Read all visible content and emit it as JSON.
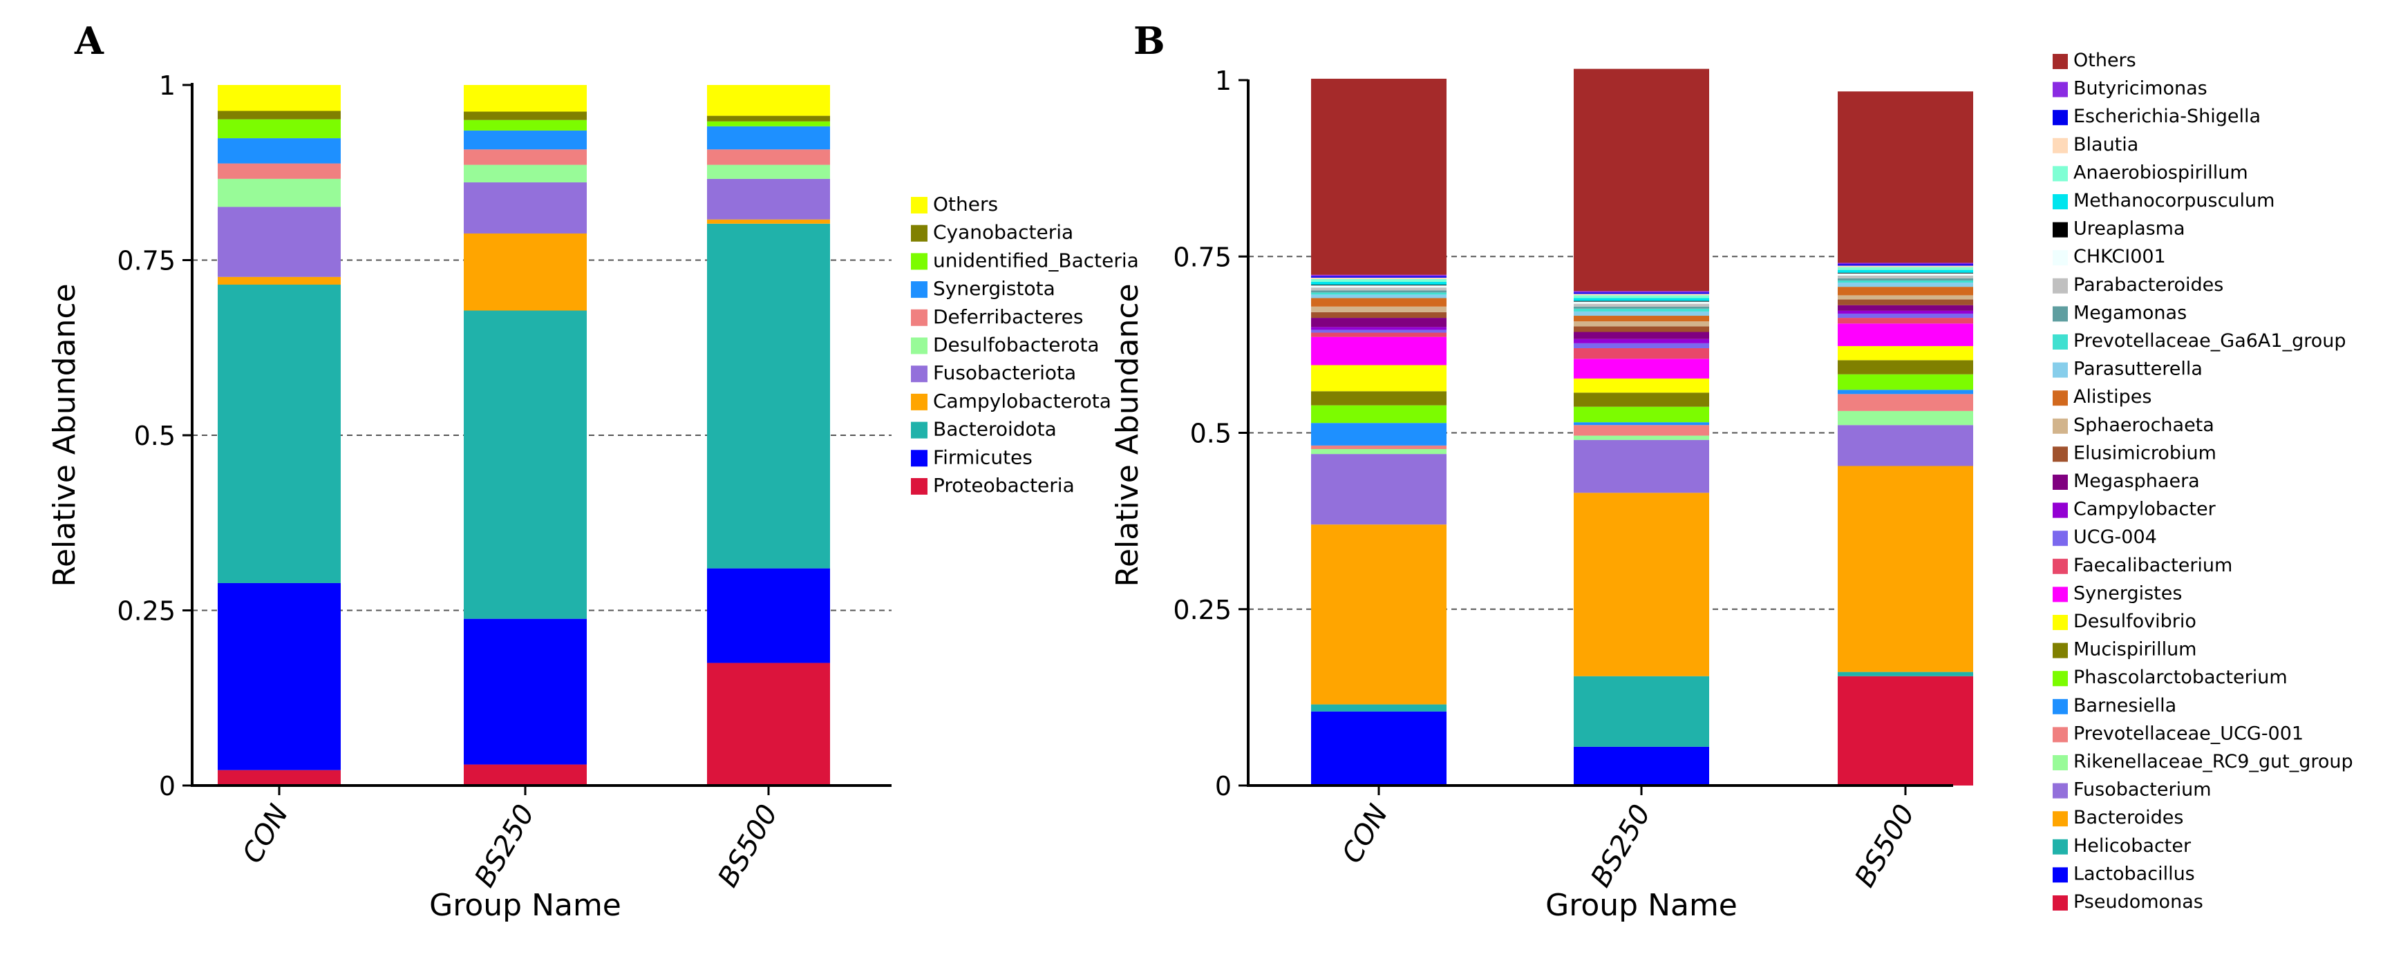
{
  "chart_data": [
    {
      "panel": "A",
      "type": "bar",
      "stacked": true,
      "title": "",
      "xlabel": "Group Name",
      "ylabel": "Relative Abundance",
      "ylim": [
        0,
        1
      ],
      "yticks": [
        "0",
        "0.25",
        "0.5",
        "0.75",
        "1"
      ],
      "grid": "dashed horizontal",
      "legend_position": "right",
      "categories": [
        "CON",
        "BS250",
        "BS500"
      ],
      "series": [
        {
          "name": "Proteobacteria",
          "color": "#DC143C",
          "values": [
            0.022,
            0.03,
            0.175
          ]
        },
        {
          "name": "Firmicutes",
          "color": "#0000FF",
          "values": [
            0.267,
            0.208,
            0.135
          ]
        },
        {
          "name": "Bacteroidota",
          "color": "#20B2AA",
          "values": [
            0.426,
            0.44,
            0.492
          ]
        },
        {
          "name": "Campylobacterota",
          "color": "#FFA500",
          "values": [
            0.011,
            0.11,
            0.006
          ]
        },
        {
          "name": "Fusobacteriota",
          "color": "#9370DB",
          "values": [
            0.1,
            0.073,
            0.058
          ]
        },
        {
          "name": "Desulfobacterota",
          "color": "#98FB98",
          "values": [
            0.04,
            0.025,
            0.02
          ]
        },
        {
          "name": "Deferribacteres",
          "color": "#F08080",
          "values": [
            0.022,
            0.022,
            0.022
          ]
        },
        {
          "name": "Synergistota",
          "color": "#1E90FF",
          "values": [
            0.036,
            0.027,
            0.033
          ]
        },
        {
          "name": "unidentified_Bacteria",
          "color": "#7CFC00",
          "values": [
            0.027,
            0.015,
            0.007
          ]
        },
        {
          "name": "Cyanobacteria",
          "color": "#808000",
          "values": [
            0.012,
            0.012,
            0.008
          ]
        },
        {
          "name": "Others",
          "color": "#FFFF00",
          "values": [
            0.037,
            0.038,
            0.044
          ]
        }
      ]
    },
    {
      "panel": "B",
      "type": "bar",
      "stacked": true,
      "title": "",
      "xlabel": "Group Name",
      "ylabel": "Relative Abundance",
      "ylim": [
        0,
        1
      ],
      "yticks": [
        "0",
        "0.25",
        "0.5",
        "0.75",
        "1"
      ],
      "grid": "dashed horizontal",
      "legend_position": "right",
      "categories": [
        "CON",
        "BS250",
        "BS500"
      ],
      "series": [
        {
          "name": "Pseudomonas",
          "color": "#DC143C",
          "values": [
            0.0,
            0.0,
            0.155
          ]
        },
        {
          "name": "Lactobacillus",
          "color": "#0000FF",
          "values": [
            0.105,
            0.055,
            0.0
          ]
        },
        {
          "name": "Helicobacter",
          "color": "#20B2AA",
          "values": [
            0.01,
            0.1,
            0.006
          ]
        },
        {
          "name": "Bacteroides",
          "color": "#FFA500",
          "values": [
            0.255,
            0.26,
            0.292
          ]
        },
        {
          "name": "Fusobacterium",
          "color": "#9370DB",
          "values": [
            0.1,
            0.075,
            0.058
          ]
        },
        {
          "name": "Rikenellaceae_RC9_gut_group",
          "color": "#98FB98",
          "values": [
            0.007,
            0.006,
            0.02
          ]
        },
        {
          "name": "Prevotellaceae_UCG-001",
          "color": "#F08080",
          "values": [
            0.005,
            0.015,
            0.024
          ]
        },
        {
          "name": "Barnesiella",
          "color": "#1E90FF",
          "values": [
            0.032,
            0.004,
            0.006
          ]
        },
        {
          "name": "Phascolarctobacterium",
          "color": "#7CFC00",
          "values": [
            0.025,
            0.022,
            0.022
          ]
        },
        {
          "name": "Mucispirillum",
          "color": "#808000",
          "values": [
            0.02,
            0.02,
            0.02
          ]
        },
        {
          "name": "Desulfovibrio",
          "color": "#FFFF00",
          "values": [
            0.037,
            0.02,
            0.02
          ]
        },
        {
          "name": "Synergistes",
          "color": "#FF00FF",
          "values": [
            0.04,
            0.028,
            0.032
          ]
        },
        {
          "name": "Faecalibacterium",
          "color": "#E8486A",
          "values": [
            0.006,
            0.015,
            0.008
          ]
        },
        {
          "name": "UCG-004",
          "color": "#7B68EE",
          "values": [
            0.004,
            0.007,
            0.006
          ]
        },
        {
          "name": "Campylobacter",
          "color": "#9400D3",
          "values": [
            0.004,
            0.006,
            0.004
          ]
        },
        {
          "name": "Megasphaera",
          "color": "#800080",
          "values": [
            0.013,
            0.01,
            0.008
          ]
        },
        {
          "name": "Elusimicrobium",
          "color": "#A0522D",
          "values": [
            0.008,
            0.008,
            0.008
          ]
        },
        {
          "name": "Sphaerochaeta",
          "color": "#D2B48C",
          "values": [
            0.008,
            0.007,
            0.006
          ]
        },
        {
          "name": "Alistipes",
          "color": "#D2691E",
          "values": [
            0.012,
            0.008,
            0.012
          ]
        },
        {
          "name": "Parasutterella",
          "color": "#87CEEB",
          "values": [
            0.005,
            0.006,
            0.006
          ]
        },
        {
          "name": "Prevotellaceae_Ga6A1_group",
          "color": "#40E0D0",
          "values": [
            0.003,
            0.004,
            0.003
          ]
        },
        {
          "name": "Megamonas",
          "color": "#5F9EA0",
          "values": [
            0.003,
            0.003,
            0.003
          ]
        },
        {
          "name": "Parabacteroides",
          "color": "#C0C0C0",
          "values": [
            0.004,
            0.004,
            0.004
          ]
        },
        {
          "name": "CHKCI001",
          "color": "#F0FFFF",
          "values": [
            0.003,
            0.003,
            0.003
          ]
        },
        {
          "name": "Ureaplasma",
          "color": "#000000",
          "values": [
            0.001,
            0.001,
            0.001
          ]
        },
        {
          "name": "Methanocorpusculum",
          "color": "#00E5EE",
          "values": [
            0.004,
            0.004,
            0.004
          ]
        },
        {
          "name": "Anaerobiospirillum",
          "color": "#7FFFD4",
          "values": [
            0.004,
            0.004,
            0.004
          ]
        },
        {
          "name": "Blautia",
          "color": "#FFDAB9",
          "values": [
            0.002,
            0.002,
            0.002
          ]
        },
        {
          "name": "Escherichia-Shigella",
          "color": "#0000EE",
          "values": [
            0.002,
            0.002,
            0.002
          ]
        },
        {
          "name": "Butyricimonas",
          "color": "#8A2BE2",
          "values": [
            0.002,
            0.002,
            0.002
          ]
        },
        {
          "name": "Others",
          "color": "#A52A2A",
          "values": [
            0.278,
            0.315,
            0.243
          ]
        }
      ]
    }
  ]
}
